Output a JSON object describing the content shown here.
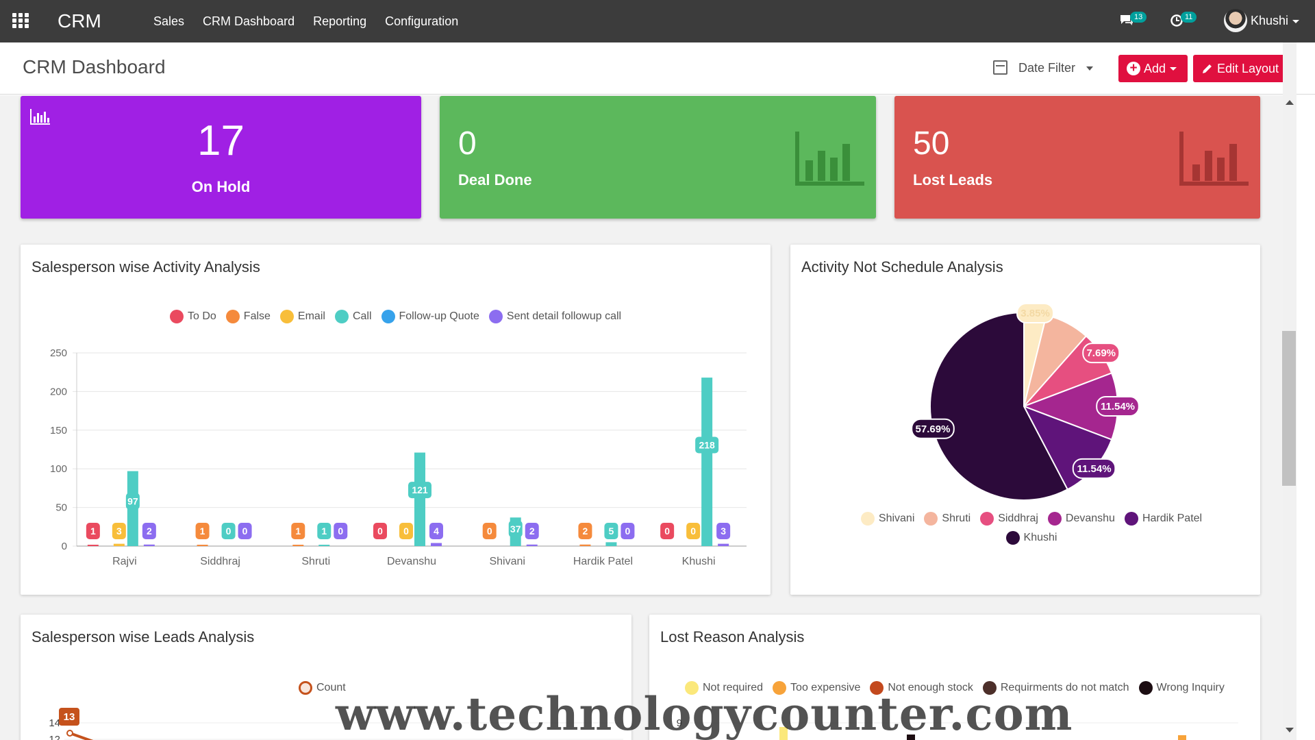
{
  "topbar": {
    "brand": "CRM",
    "menu": [
      "Sales",
      "CRM Dashboard",
      "Reporting",
      "Configuration"
    ],
    "chat_count": "13",
    "activity_count": "11",
    "user": "Khushi"
  },
  "control_panel": {
    "title": "CRM Dashboard",
    "date_filter": "Date Filter",
    "add_label": "Add",
    "edit_label": "Edit Layout"
  },
  "kpis": [
    {
      "value": "17",
      "label": "On Hold",
      "color": "#a020e4"
    },
    {
      "value": "0",
      "label": "Deal Done",
      "color": "#5cb85c"
    },
    {
      "value": "50",
      "label": "Lost Leads",
      "color": "#d9534f"
    }
  ],
  "cards": {
    "activity": "Salesperson wise Activity Analysis",
    "not_schedule": "Activity Not Schedule Analysis",
    "leads": "Salesperson wise Leads Analysis",
    "lost_reason": "Lost Reason Analysis"
  },
  "chart_data": [
    {
      "type": "bar",
      "title": "Salesperson wise Activity Analysis",
      "categories": [
        "Rajvi",
        "Siddhraj",
        "Shruti",
        "Devanshu",
        "Shivani",
        "Hardik Patel",
        "Khushi"
      ],
      "ylim": [
        0,
        250
      ],
      "yticks": [
        0,
        50,
        100,
        150,
        200,
        250
      ],
      "grid": true,
      "legend_position": "top",
      "series": [
        {
          "name": "To Do",
          "color": "#ea4a5f",
          "values": [
            1,
            null,
            null,
            0,
            null,
            null,
            0
          ]
        },
        {
          "name": "False",
          "color": "#f58a3c",
          "values": [
            null,
            1,
            1,
            null,
            0,
            2,
            null
          ]
        },
        {
          "name": "Email",
          "color": "#f8be3a",
          "values": [
            3,
            null,
            null,
            0,
            null,
            null,
            0
          ]
        },
        {
          "name": "Call",
          "color": "#4ecdc4",
          "values": [
            97,
            0,
            1,
            121,
            37,
            5,
            218
          ]
        },
        {
          "name": "Follow-up Quote",
          "color": "#36a2eb",
          "values": [
            null,
            null,
            null,
            null,
            null,
            null,
            null
          ]
        },
        {
          "name": "Sent detail followup call",
          "color": "#8c6df0",
          "values": [
            2,
            0,
            0,
            4,
            2,
            0,
            3
          ]
        }
      ]
    },
    {
      "type": "pie",
      "title": "Activity Not Schedule Analysis",
      "legend_position": "bottom",
      "slices": [
        {
          "label": "Shivani",
          "value": 3.85,
          "text": "3.85%",
          "color": "#fdebc4"
        },
        {
          "label": "Shruti",
          "value": 7.69,
          "text": "",
          "color": "#f4b59e"
        },
        {
          "label": "Siddhraj",
          "value": 7.69,
          "text": "7.69%",
          "color": "#e64f80"
        },
        {
          "label": "Devanshu",
          "value": 11.54,
          "text": "11.54%",
          "color": "#a5268f"
        },
        {
          "label": "Hardik Patel",
          "value": 11.54,
          "text": "11.54%",
          "color": "#5f147a"
        },
        {
          "label": "Khushi",
          "value": 57.69,
          "text": "57.69%",
          "color": "#2c0a3a"
        }
      ]
    },
    {
      "type": "line",
      "title": "Salesperson wise Leads Analysis",
      "legend": [
        "Count"
      ],
      "color": "#c5521c",
      "yticks": [
        "14",
        "12"
      ],
      "values": [
        13
      ],
      "legend_position": "top"
    },
    {
      "type": "bar",
      "title": "Lost Reason Analysis",
      "legend_position": "top",
      "series": [
        {
          "name": "Not required",
          "color": "#fbe87b"
        },
        {
          "name": "Too expensive",
          "color": "#f7a33a"
        },
        {
          "name": "Not enough stock",
          "color": "#c3491e"
        },
        {
          "name": "Requirments do not match",
          "color": "#4c2f2a"
        },
        {
          "name": "Wrong Inquiry",
          "color": "#1c0d12"
        }
      ],
      "yticks": [
        "9"
      ]
    }
  ],
  "watermark": "www.technologycounter.com"
}
